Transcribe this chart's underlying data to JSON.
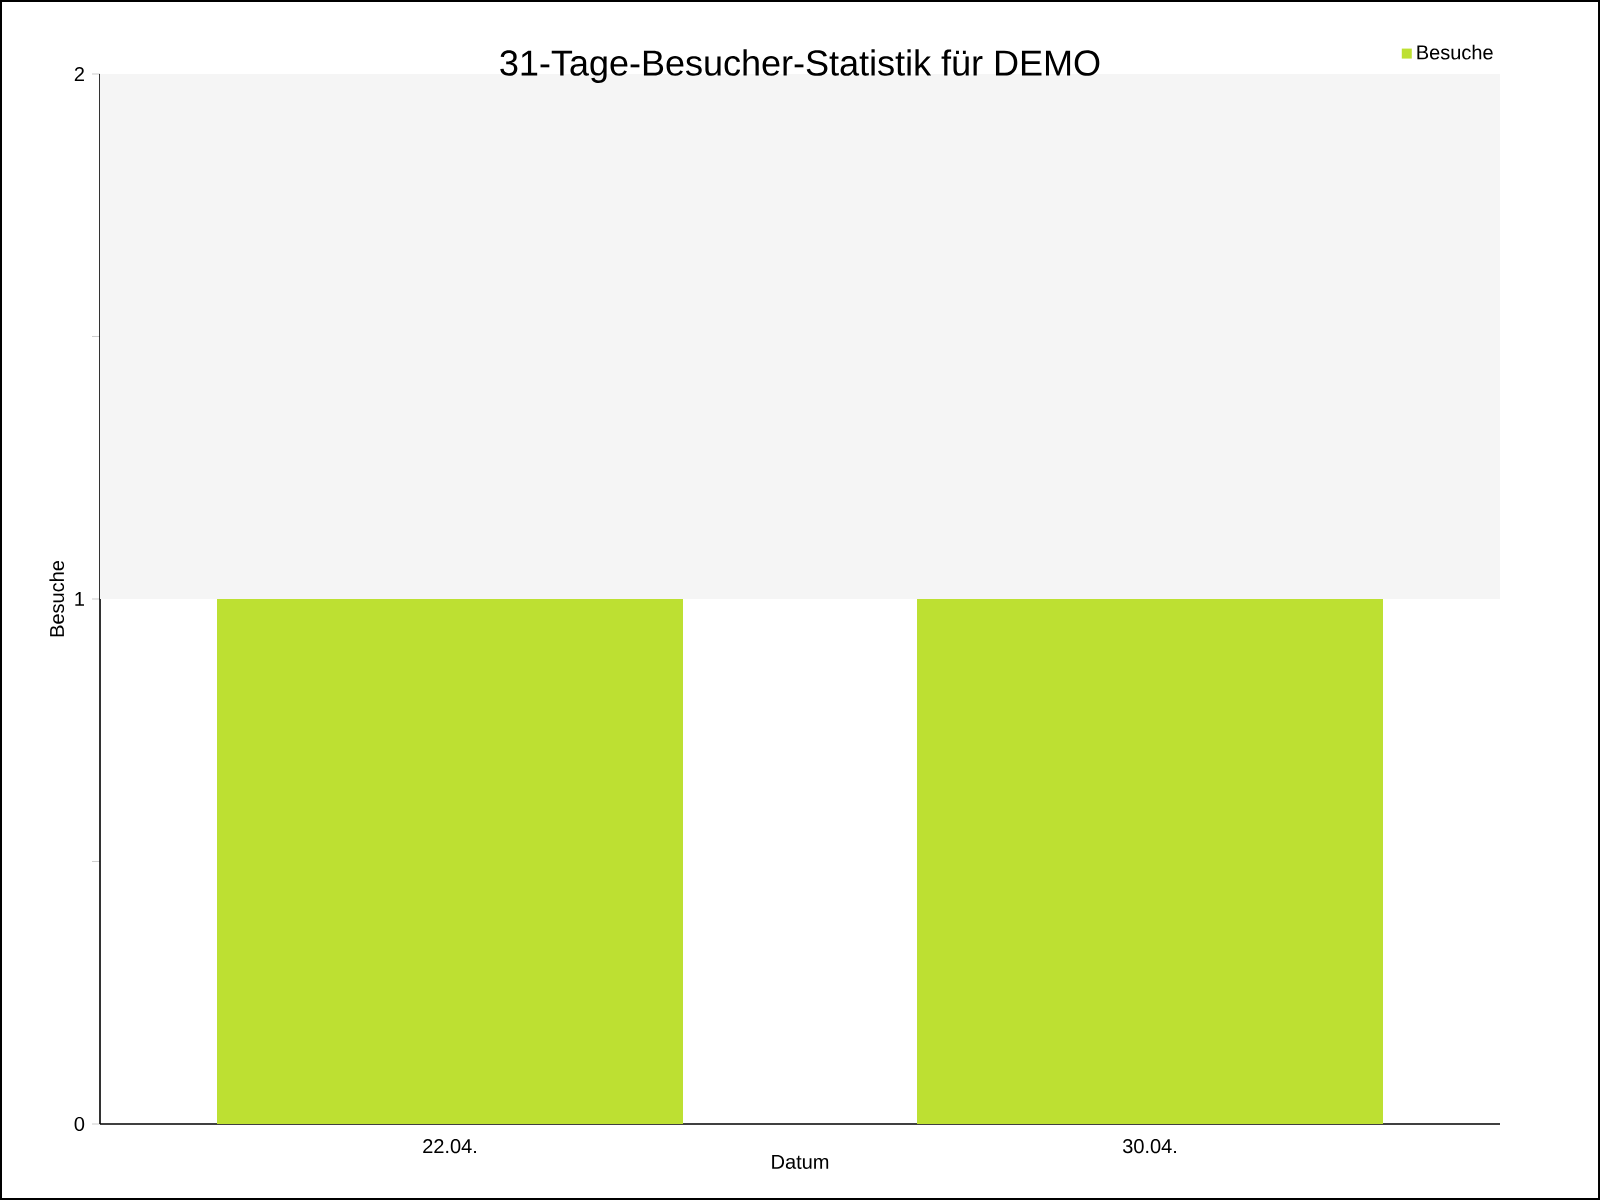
{
  "chart_data": {
    "type": "bar",
    "title": "31-Tage-Besucher-Statistik für DEMO",
    "xlabel": "Datum",
    "ylabel": "Besuche",
    "categories": [
      "22.04.",
      "30.04."
    ],
    "series": [
      {
        "name": "Besuche",
        "color": "#bde032",
        "values": [
          1,
          1
        ]
      }
    ],
    "ylim": [
      0,
      2
    ],
    "yticks": [
      0,
      {
        "value": 0.5,
        "label": null
      },
      1,
      {
        "value": 1.5,
        "label": null
      },
      2
    ],
    "bands": [
      {
        "axis": "y",
        "from": 1,
        "to": 2,
        "color": "#f5f5f5"
      }
    ],
    "legend": "top right"
  }
}
